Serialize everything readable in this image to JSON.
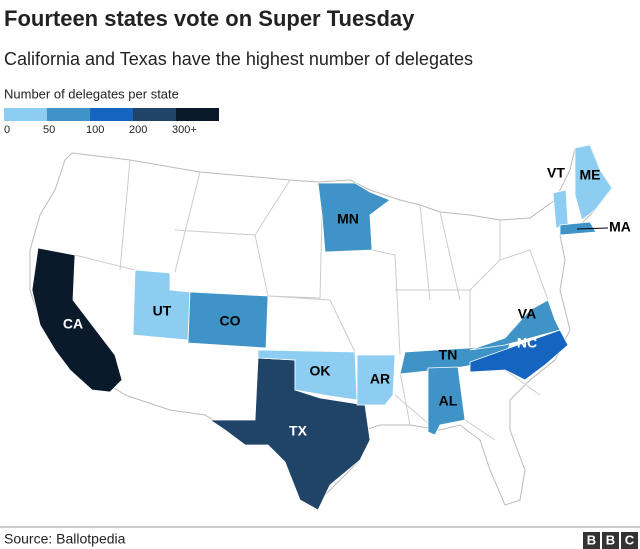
{
  "header": {
    "title": "Fourteen states vote on Super Tuesday",
    "subtitle": "California and Texas have the highest number of delegates"
  },
  "legend": {
    "title": "Number of delegates per state",
    "colors": [
      "#8ccdf1",
      "#3f93c6",
      "#1564c0",
      "#1f4468",
      "#0b1a2b"
    ],
    "labels": [
      "0",
      "50",
      "100",
      "200",
      "300+"
    ]
  },
  "states": [
    {
      "label": "CA",
      "color": "#0b1a2b",
      "text_color": "#ffffff"
    },
    {
      "label": "UT",
      "color": "#8ccdf1",
      "text_color": "#000000"
    },
    {
      "label": "CO",
      "color": "#3f93c6",
      "text_color": "#000000"
    },
    {
      "label": "TX",
      "color": "#1f4468",
      "text_color": "#ffffff"
    },
    {
      "label": "OK",
      "color": "#8ccdf1",
      "text_color": "#000000"
    },
    {
      "label": "AR",
      "color": "#8ccdf1",
      "text_color": "#000000"
    },
    {
      "label": "MN",
      "color": "#3f93c6",
      "text_color": "#000000"
    },
    {
      "label": "TN",
      "color": "#3f93c6",
      "text_color": "#000000"
    },
    {
      "label": "NC",
      "color": "#1564c0",
      "text_color": "#ffffff"
    },
    {
      "label": "VA",
      "color": "#3f93c6",
      "text_color": "#000000"
    },
    {
      "label": "AL",
      "color": "#3f93c6",
      "text_color": "#000000"
    },
    {
      "label": "VT",
      "color": "#8ccdf1",
      "text_color": "#000000"
    },
    {
      "label": "ME",
      "color": "#8ccdf1",
      "text_color": "#000000"
    },
    {
      "label": "MA",
      "color": "#3f93c6",
      "text_color": "#000000"
    }
  ],
  "footer": {
    "source": "Source: Ballotpedia",
    "logo": [
      "B",
      "B",
      "C"
    ]
  }
}
